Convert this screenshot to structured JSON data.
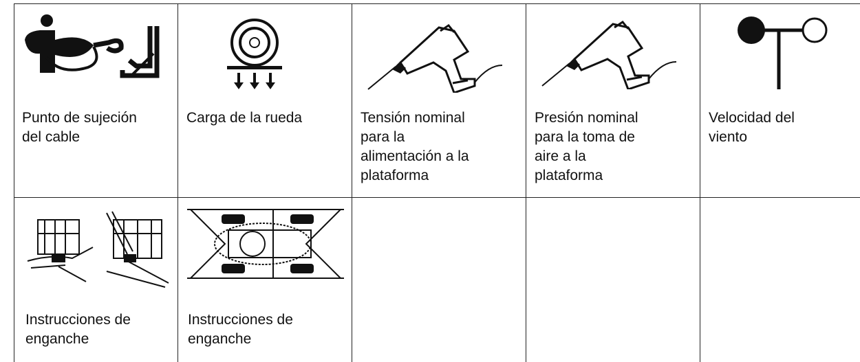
{
  "rows": [
    [
      {
        "lines": [
          "Punto de sujeción",
          "del cable"
        ]
      },
      {
        "lines": [
          "Carga de la rueda"
        ]
      },
      {
        "lines": [
          "Tensión nominal",
          "para la",
          "alimentación a la",
          "plataforma"
        ]
      },
      {
        "lines": [
          "Presión nominal",
          "para la toma de",
          "aire a la",
          "plataforma"
        ]
      },
      {
        "lines": [
          "Velocidad del",
          "viento"
        ]
      }
    ],
    [
      {
        "lines": [
          "Instrucciones de",
          "enganche"
        ]
      },
      {
        "lines": [
          "Instrucciones de",
          "enganche"
        ]
      }
    ]
  ]
}
